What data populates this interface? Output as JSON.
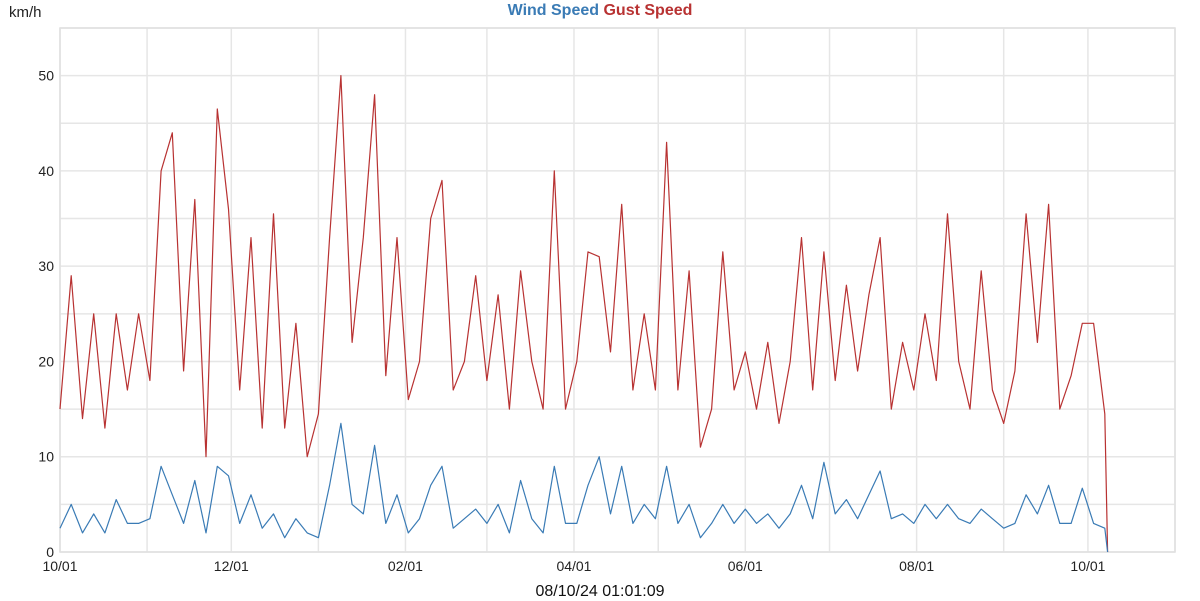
{
  "chart_data": {
    "type": "line",
    "title": "",
    "xlabel": "",
    "ylabel": "km/h",
    "ylim": [
      0,
      55
    ],
    "xlim": [
      "2023-10-01",
      "2024-11-01"
    ],
    "yticks": [
      "0",
      "10",
      "20",
      "30",
      "40",
      "50"
    ],
    "xticks": [
      {
        "date": "2023-10-01",
        "label": "10/01"
      },
      {
        "date": "2023-12-01",
        "label": "12/01"
      },
      {
        "date": "2024-02-01",
        "label": "02/01"
      },
      {
        "date": "2024-04-01",
        "label": "04/01"
      },
      {
        "date": "2024-06-01",
        "label": "06/01"
      },
      {
        "date": "2024-08-01",
        "label": "08/01"
      },
      {
        "date": "2024-10-01",
        "label": "10/01"
      }
    ],
    "grid": true,
    "legend_position": "top-center",
    "series": [
      {
        "name": "Wind Speed",
        "color": "#3a7bb5"
      },
      {
        "name": "Gust Speed",
        "color": "#b83232"
      }
    ],
    "x": [
      "2023-10-01",
      "2023-10-05",
      "2023-10-09",
      "2023-10-13",
      "2023-10-17",
      "2023-10-21",
      "2023-10-25",
      "2023-10-29",
      "2023-11-02",
      "2023-11-06",
      "2023-11-10",
      "2023-11-14",
      "2023-11-18",
      "2023-11-22",
      "2023-11-26",
      "2023-11-30",
      "2023-12-04",
      "2023-12-08",
      "2023-12-12",
      "2023-12-16",
      "2023-12-20",
      "2023-12-24",
      "2023-12-28",
      "2024-01-01",
      "2024-01-05",
      "2024-01-09",
      "2024-01-13",
      "2024-01-17",
      "2024-01-21",
      "2024-01-25",
      "2024-01-29",
      "2024-02-02",
      "2024-02-06",
      "2024-02-10",
      "2024-02-14",
      "2024-02-18",
      "2024-02-22",
      "2024-02-26",
      "2024-03-01",
      "2024-03-05",
      "2024-03-09",
      "2024-03-13",
      "2024-03-17",
      "2024-03-21",
      "2024-03-25",
      "2024-03-29",
      "2024-04-02",
      "2024-04-06",
      "2024-04-10",
      "2024-04-14",
      "2024-04-18",
      "2024-04-22",
      "2024-04-26",
      "2024-04-30",
      "2024-05-04",
      "2024-05-08",
      "2024-05-12",
      "2024-05-16",
      "2024-05-20",
      "2024-05-24",
      "2024-05-28",
      "2024-06-01",
      "2024-06-05",
      "2024-06-09",
      "2024-06-13",
      "2024-06-17",
      "2024-06-21",
      "2024-06-25",
      "2024-06-29",
      "2024-07-03",
      "2024-07-07",
      "2024-07-11",
      "2024-07-15",
      "2024-07-19",
      "2024-07-23",
      "2024-07-27",
      "2024-07-31",
      "2024-08-04",
      "2024-08-08",
      "2024-08-12",
      "2024-08-16",
      "2024-08-20",
      "2024-08-24",
      "2024-08-28",
      "2024-09-01",
      "2024-09-05",
      "2024-09-09",
      "2024-09-13",
      "2024-09-17",
      "2024-09-21",
      "2024-09-25",
      "2024-09-29",
      "2024-10-03",
      "2024-10-07",
      "2024-10-08"
    ],
    "wind": [
      2.5,
      5,
      2,
      4,
      2,
      5.5,
      3,
      3,
      3.5,
      9,
      6,
      3,
      7.5,
      2,
      9,
      8,
      3,
      6,
      2.5,
      4,
      1.5,
      3.5,
      2,
      1.5,
      7,
      13.5,
      5,
      4,
      11.2,
      3,
      6,
      2,
      3.5,
      7,
      9,
      2.5,
      3.5,
      4.5,
      3,
      5,
      2,
      7.5,
      3.5,
      2,
      9,
      3,
      3,
      7,
      10,
      4,
      9,
      3,
      5,
      3.5,
      9,
      3,
      5,
      1.5,
      3,
      5,
      3,
      4.5,
      3,
      4,
      2.5,
      4,
      7,
      3.5,
      9.4,
      4,
      5.5,
      3.5,
      6,
      8.5,
      3.5,
      4,
      3,
      5,
      3.5,
      5,
      3.5,
      3,
      4.5,
      3.5,
      2.5,
      3,
      6,
      4,
      7,
      3,
      3,
      6.7,
      3,
      2.5,
      0
    ],
    "gust": [
      15,
      29,
      14,
      25,
      13,
      25,
      17,
      25,
      18,
      40,
      44,
      19,
      37,
      10,
      46.5,
      36,
      17,
      33,
      13,
      35.5,
      13,
      24,
      10,
      14.5,
      33,
      50,
      22,
      33,
      48,
      18.5,
      33,
      16,
      20,
      35,
      39,
      17,
      20,
      29,
      18,
      27,
      15,
      29.5,
      20,
      15,
      40,
      15,
      20,
      31.5,
      31,
      21,
      36.5,
      17,
      25,
      17,
      43,
      17,
      29.5,
      11,
      15,
      31.5,
      17,
      21,
      15,
      22,
      13.5,
      20,
      33,
      17,
      31.5,
      18,
      28,
      19,
      27,
      33,
      15,
      22,
      17,
      25,
      18,
      35.5,
      20,
      15,
      29.5,
      17,
      13.5,
      19,
      35.5,
      22,
      36.5,
      15,
      18.5,
      24,
      24,
      14.5,
      0
    ]
  },
  "legend": {
    "wind_label": "Wind Speed",
    "gust_label": "Gust Speed"
  },
  "unit_label": "km/h",
  "timestamp": "08/10/24 01:01:09"
}
